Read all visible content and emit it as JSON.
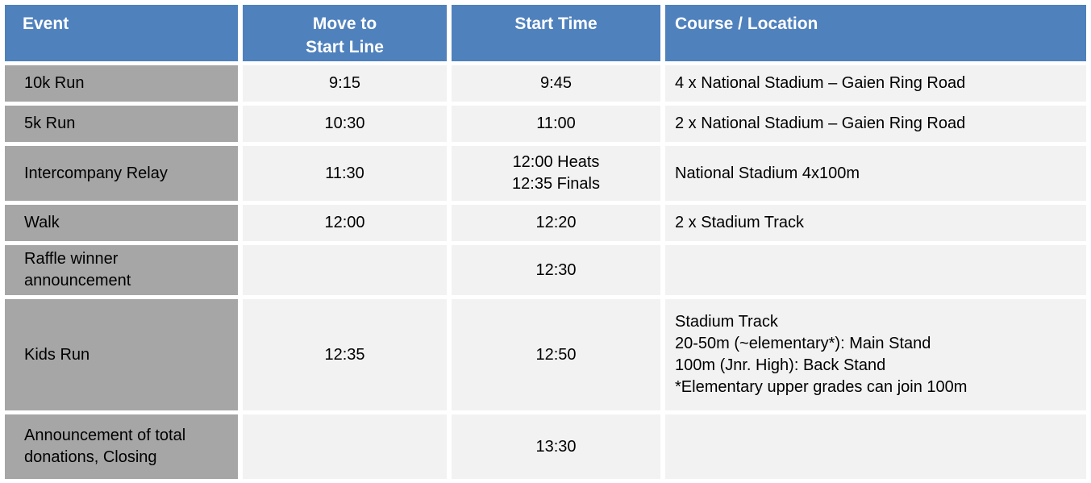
{
  "colors": {
    "header_bg": "#4F81BD",
    "header_text": "#FFFFFF",
    "event_column_bg": "#A6A6A6",
    "body_cell_bg": "#F2F2F2",
    "body_text": "#000000",
    "gutter": "#FFFFFF"
  },
  "table": {
    "headers": [
      {
        "id": "event",
        "lines": [
          "Event"
        ]
      },
      {
        "id": "move_to_start_line",
        "lines": [
          "Move to",
          "Start Line"
        ]
      },
      {
        "id": "start_time",
        "lines": [
          "Start Time"
        ]
      },
      {
        "id": "course_location",
        "lines": [
          "Course / Location"
        ]
      }
    ],
    "rows": [
      {
        "event": [
          "10k Run"
        ],
        "move_to_start_line": [
          "9:15"
        ],
        "start_time": [
          "9:45"
        ],
        "course_location": [
          "4 x National Stadium – Gaien Ring Road"
        ]
      },
      {
        "event": [
          "5k Run"
        ],
        "move_to_start_line": [
          "10:30"
        ],
        "start_time": [
          "11:00"
        ],
        "course_location": [
          "2 x National Stadium – Gaien Ring Road"
        ]
      },
      {
        "event": [
          "Intercompany Relay"
        ],
        "move_to_start_line": [
          "11:30"
        ],
        "start_time": [
          "12:00 Heats",
          "12:35 Finals"
        ],
        "course_location": [
          "National Stadium 4x100m"
        ]
      },
      {
        "event": [
          "Walk"
        ],
        "move_to_start_line": [
          "12:00"
        ],
        "start_time": [
          "12:20"
        ],
        "course_location": [
          "2 x Stadium Track"
        ]
      },
      {
        "event": [
          "Raffle winner",
          "announcement"
        ],
        "move_to_start_line": [],
        "start_time": [
          "12:30"
        ],
        "course_location": []
      },
      {
        "event": [
          "Kids Run"
        ],
        "move_to_start_line": [
          "12:35"
        ],
        "start_time": [
          "12:50"
        ],
        "course_location": [
          "Stadium Track",
          "20-50m (~elementary*): Main Stand",
          "100m (Jnr. High): Back Stand",
          "*Elementary upper grades can join 100m"
        ]
      },
      {
        "event": [
          "Announcement of total",
          "donations, Closing"
        ],
        "move_to_start_line": [],
        "start_time": [
          "13:30"
        ],
        "course_location": []
      }
    ]
  }
}
